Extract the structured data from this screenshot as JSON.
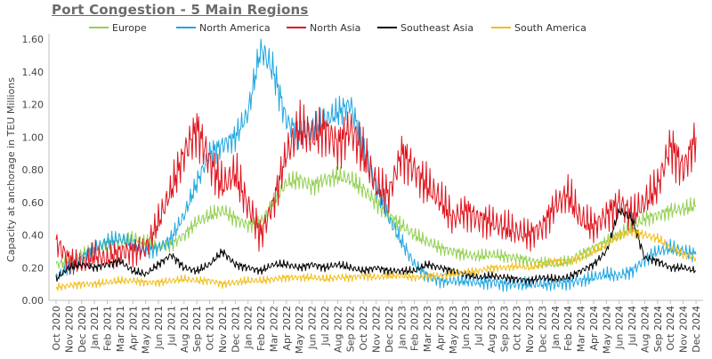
{
  "chart_data": {
    "type": "line",
    "title": "Port Congestion - 5 Main Regions",
    "xlabel": "",
    "ylabel": "Capacity at anchorage in TEU Millions",
    "ylim": [
      0,
      1.6
    ],
    "yticks": [
      "0.00",
      "0.20",
      "0.40",
      "0.60",
      "0.80",
      "1.00",
      "1.20",
      "1.40",
      "1.60"
    ],
    "grid": false,
    "legend_position": "top",
    "x": [
      "Oct 2020",
      "Nov 2020",
      "Dec 2020",
      "Jan 2021",
      "Feb 2021",
      "Mar 2021",
      "Apr 2021",
      "May 2021",
      "Jun 2021",
      "Jul 2021",
      "Aug 2021",
      "Sep 2021",
      "Oct 2021",
      "Nov 2021",
      "Dec 2021",
      "Jan 2022",
      "Feb 2022",
      "Mar 2022",
      "Apr 2022",
      "May 2022",
      "Jun 2022",
      "Jul 2022",
      "Aug 2022",
      "Sep 2022",
      "Oct 2022",
      "Nov 2022",
      "Dec 2022",
      "Jan 2023",
      "Feb 2023",
      "Mar 2023",
      "Apr 2023",
      "May 2023",
      "Jun 2023",
      "Jul 2023",
      "Aug 2023",
      "Sep 2023",
      "Oct 2023",
      "Nov 2023",
      "Dec 2023",
      "Jan 2024",
      "Feb 2024",
      "Mar 2024",
      "Apr 2024",
      "May 2024",
      "Jun 2024",
      "Jul 2024",
      "Aug 2024",
      "Sep 2024",
      "Oct 2024",
      "Nov 2024",
      "Dec 2024"
    ],
    "series": [
      {
        "name": "Europe",
        "color": "#92d050",
        "values": [
          0.22,
          0.24,
          0.28,
          0.32,
          0.35,
          0.36,
          0.38,
          0.36,
          0.33,
          0.34,
          0.4,
          0.48,
          0.52,
          0.55,
          0.5,
          0.46,
          0.48,
          0.6,
          0.72,
          0.74,
          0.7,
          0.74,
          0.76,
          0.74,
          0.68,
          0.6,
          0.52,
          0.46,
          0.4,
          0.36,
          0.32,
          0.3,
          0.28,
          0.27,
          0.28,
          0.27,
          0.26,
          0.24,
          0.23,
          0.22,
          0.24,
          0.28,
          0.32,
          0.36,
          0.4,
          0.45,
          0.5,
          0.52,
          0.55,
          0.56,
          0.58
        ]
      },
      {
        "name": "North America",
        "color": "#1ea7e1",
        "values": [
          0.14,
          0.2,
          0.26,
          0.32,
          0.36,
          0.38,
          0.34,
          0.3,
          0.32,
          0.38,
          0.52,
          0.72,
          0.9,
          0.95,
          1.0,
          1.15,
          1.55,
          1.4,
          1.1,
          1.02,
          1.05,
          1.1,
          1.15,
          1.2,
          0.95,
          0.7,
          0.5,
          0.36,
          0.22,
          0.15,
          0.12,
          0.12,
          0.12,
          0.11,
          0.11,
          0.1,
          0.1,
          0.1,
          0.1,
          0.1,
          0.11,
          0.12,
          0.14,
          0.16,
          0.15,
          0.18,
          0.25,
          0.3,
          0.32,
          0.3,
          0.28
        ]
      },
      {
        "name": "North Asia",
        "color": "#e0141e",
        "values": [
          0.36,
          0.25,
          0.22,
          0.28,
          0.25,
          0.3,
          0.3,
          0.32,
          0.48,
          0.68,
          0.9,
          1.05,
          0.85,
          0.7,
          0.78,
          0.58,
          0.4,
          0.6,
          0.9,
          1.05,
          1.0,
          1.05,
          0.95,
          1.05,
          0.9,
          0.7,
          0.65,
          0.9,
          0.8,
          0.7,
          0.62,
          0.5,
          0.55,
          0.5,
          0.48,
          0.45,
          0.42,
          0.4,
          0.45,
          0.58,
          0.65,
          0.5,
          0.45,
          0.52,
          0.6,
          0.52,
          0.6,
          0.7,
          0.95,
          0.8,
          1.0
        ]
      },
      {
        "name": "Southeast Asia",
        "color": "#000000",
        "values": [
          0.13,
          0.2,
          0.22,
          0.2,
          0.22,
          0.24,
          0.18,
          0.16,
          0.22,
          0.28,
          0.2,
          0.18,
          0.22,
          0.3,
          0.22,
          0.2,
          0.18,
          0.22,
          0.22,
          0.2,
          0.22,
          0.2,
          0.22,
          0.2,
          0.18,
          0.2,
          0.18,
          0.18,
          0.18,
          0.22,
          0.2,
          0.18,
          0.16,
          0.14,
          0.15,
          0.14,
          0.13,
          0.12,
          0.14,
          0.13,
          0.14,
          0.18,
          0.22,
          0.3,
          0.55,
          0.5,
          0.26,
          0.24,
          0.2,
          0.2,
          0.18
        ]
      },
      {
        "name": "South America",
        "color": "#f2be1a",
        "values": [
          0.08,
          0.09,
          0.1,
          0.1,
          0.11,
          0.12,
          0.12,
          0.11,
          0.11,
          0.12,
          0.13,
          0.12,
          0.12,
          0.1,
          0.11,
          0.12,
          0.12,
          0.13,
          0.14,
          0.14,
          0.14,
          0.13,
          0.14,
          0.14,
          0.15,
          0.14,
          0.15,
          0.15,
          0.14,
          0.15,
          0.15,
          0.16,
          0.17,
          0.18,
          0.2,
          0.2,
          0.21,
          0.2,
          0.22,
          0.24,
          0.24,
          0.26,
          0.3,
          0.34,
          0.4,
          0.42,
          0.4,
          0.38,
          0.32,
          0.28,
          0.26
        ]
      }
    ]
  }
}
